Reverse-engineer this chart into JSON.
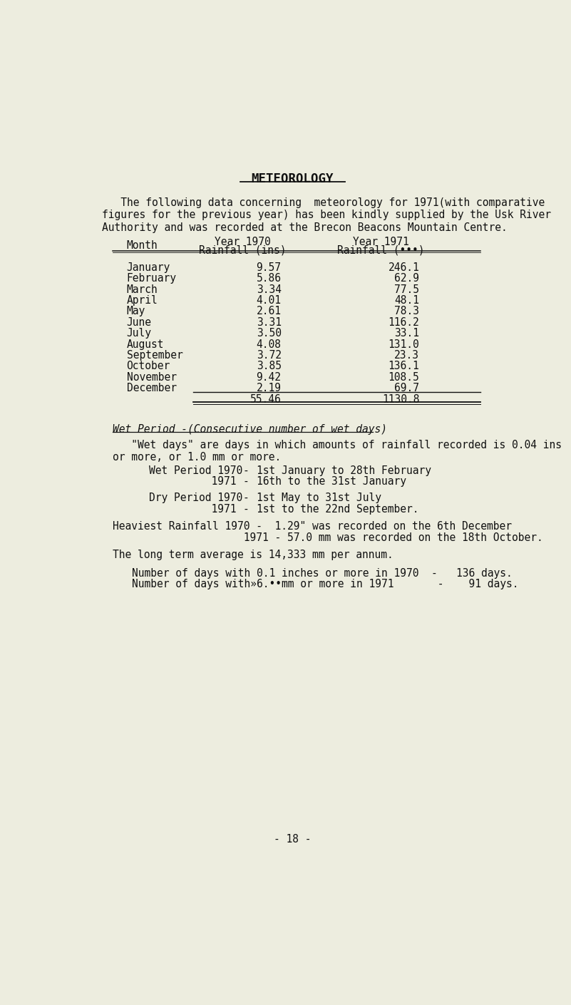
{
  "bg_color": "#ededdf",
  "title": "METEOROLOGY",
  "intro_text": "   The following data concerning  meteorology for 1971(with comparative\nfigures for the previous year) has been kindly supplied by the Usk River\nAuthority and was recorded at the Brecon Beacons Mountain Centre.",
  "months": [
    "January",
    "February",
    "March",
    "April",
    "May",
    "June",
    "July",
    "August",
    "September",
    "October",
    "November",
    "December"
  ],
  "rain_1970": [
    "9.57",
    "5.86",
    "3.34",
    "4.01",
    "2.61",
    "3.31",
    "3.50",
    "4.08",
    "3.72",
    "3.85",
    "9.42",
    "2.19"
  ],
  "rain_1971": [
    "246.1",
    "62.9",
    "77.5",
    "48.1",
    "78.3",
    "116.2",
    "33.1",
    "131.0",
    "23.3",
    "136.1",
    "108.5",
    "69.7"
  ],
  "total_1970": "55.46",
  "total_1971": "1130.8",
  "wet_period_header": "Wet Period -(Consecutive number of wet days)",
  "wet_days_def": "   \"Wet days\" are days in which amounts of rainfall recorded is 0.04 ins\nor more, or 1.0 mm or more.",
  "page_number": "- 18 -"
}
